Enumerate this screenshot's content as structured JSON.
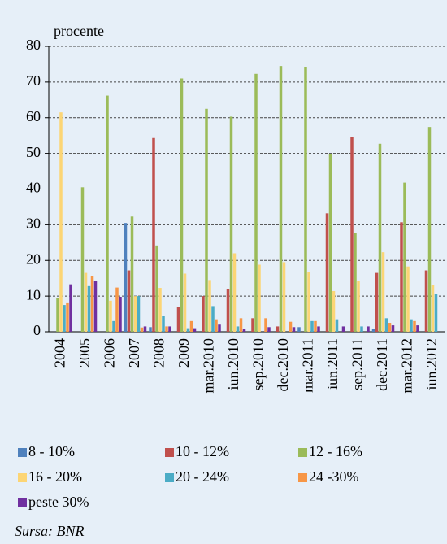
{
  "chart_data": {
    "type": "bar",
    "y_label": "procente",
    "source": "Sursa: BNR",
    "categories": [
      "2004",
      "2005",
      "2006",
      "2007",
      "2008",
      "2009",
      "mar.2010",
      "iun.2010",
      "sep.2010",
      "dec.2010",
      "mar.2011",
      "iun.2011",
      "sep.2011",
      "dec.2011",
      "mar.2012",
      "iun.2012"
    ],
    "series": [
      {
        "name": "8 - 10%",
        "color": "#4f81bd",
        "values": [
          0,
          0,
          0,
          30.5,
          1.3,
          0,
          0,
          0,
          0,
          0,
          1.3,
          0,
          0,
          0.8,
          0,
          0
        ]
      },
      {
        "name": "10 - 12%",
        "color": "#c0504d",
        "values": [
          0,
          0,
          0,
          17.2,
          54.3,
          7,
          10,
          12,
          3.8,
          1.5,
          0,
          33.2,
          54.5,
          16.5,
          30.7,
          17.2
        ]
      },
      {
        "name": "12 - 16%",
        "color": "#9bbb59",
        "values": [
          9.5,
          40.5,
          66.2,
          32.3,
          24.2,
          71,
          62.5,
          60.3,
          72.3,
          74.5,
          74.2,
          49.8,
          27.7,
          52.7,
          41.8,
          57.4
        ]
      },
      {
        "name": "16 - 20%",
        "color": "#fcd575",
        "values": [
          61.5,
          16.5,
          8.7,
          10,
          12.3,
          16.3,
          14.5,
          22,
          18.8,
          19.5,
          16.8,
          11.4,
          14.3,
          22.3,
          18.3,
          13
        ]
      },
      {
        "name": "20 - 24%",
        "color": "#4bacc6",
        "values": [
          7.5,
          12.8,
          3,
          10,
          4.5,
          1,
          7.2,
          1.5,
          0,
          0,
          3,
          3.5,
          1.5,
          3.8,
          3.5,
          10.5
        ]
      },
      {
        "name": "24 -30%",
        "color": "#f79646",
        "values": [
          8,
          15.7,
          12.4,
          1.2,
          1.5,
          3,
          3.5,
          3.8,
          3.8,
          2.8,
          3,
          0,
          0,
          2.5,
          3,
          0
        ]
      },
      {
        "name": "peste 30%",
        "color": "#7030a0",
        "values": [
          13.3,
          14.2,
          9.8,
          1.5,
          1.5,
          1,
          2,
          0.8,
          1.3,
          1.3,
          1.5,
          1.5,
          1.5,
          1.8,
          1.8,
          0
        ]
      }
    ],
    "ylim": [
      0,
      80
    ],
    "yticks": [
      0,
      10,
      20,
      30,
      40,
      50,
      60,
      70,
      80
    ],
    "grid": true
  }
}
